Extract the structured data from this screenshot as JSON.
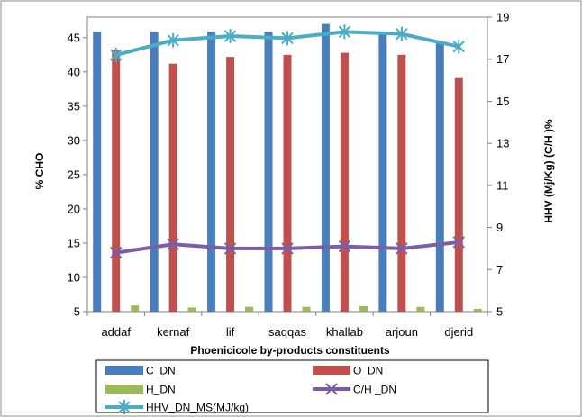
{
  "chart_data": {
    "type": "bar",
    "xlabel": "Phoenicicole by-products constituents",
    "ylabel_left": "% CHO",
    "ylabel_right": "HHV (Mj/Kg) (C/H )%",
    "categories": [
      "addaf",
      "kernaf",
      "lif",
      "saqqas",
      "khallab",
      "arjoun",
      "djerid"
    ],
    "ylim_left": [
      5,
      48
    ],
    "yticks_left": [
      "5",
      "10",
      "15",
      "20",
      "25",
      "30",
      "35",
      "40",
      "45"
    ],
    "ylim_right": [
      5,
      19
    ],
    "yticks_right": [
      "5",
      "7",
      "9",
      "11",
      "13",
      "15",
      "17",
      "19"
    ],
    "bar_series": [
      {
        "name": "C_DN",
        "color": "#4a7ebb",
        "axis": "left",
        "values": [
          45.9,
          45.9,
          45.9,
          45.9,
          47.0,
          45.8,
          44.5
        ]
      },
      {
        "name": "O_DN",
        "color": "#c0504d",
        "axis": "left",
        "values": [
          43.2,
          41.2,
          42.2,
          42.5,
          42.8,
          42.5,
          39.1
        ]
      },
      {
        "name": "H_DN",
        "color": "#9bbb59",
        "axis": "left",
        "values": [
          5.9,
          5.6,
          5.7,
          5.7,
          5.8,
          5.7,
          5.4
        ]
      }
    ],
    "line_series": [
      {
        "name": "C/H _DN",
        "color": "#7b5ea7",
        "axis": "right",
        "marker": "x",
        "values": [
          7.8,
          8.2,
          8.0,
          8.0,
          8.1,
          8.0,
          8.3
        ]
      },
      {
        "name": "HHV_DN_MS(MJ/kg)",
        "color": "#4bacc6",
        "axis": "right",
        "marker": "star",
        "values": [
          17.2,
          17.9,
          18.1,
          18.0,
          18.3,
          18.2,
          17.6
        ]
      }
    ],
    "legend": {
      "placement": "bottom",
      "items": [
        "C_DN",
        "O_DN",
        "H_DN",
        "C/H _DN",
        "HHV_DN_MS(MJ/kg)"
      ]
    },
    "grid": false
  }
}
